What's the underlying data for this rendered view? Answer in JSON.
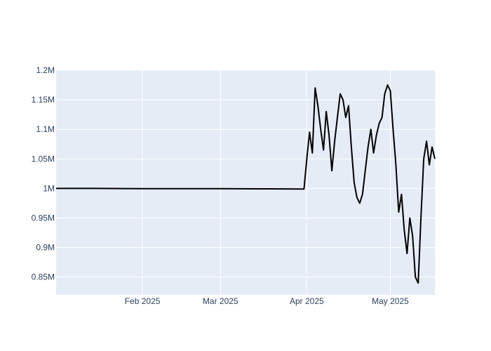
{
  "chart_data": {
    "type": "line",
    "title": "",
    "xlabel": "",
    "ylabel": "",
    "x_range": [
      "2025-01-01",
      "2025-05-17"
    ],
    "ylim": [
      820000,
      1200000
    ],
    "x_ticks": [
      {
        "date": "2025-02-01",
        "label": "Feb 2025"
      },
      {
        "date": "2025-03-01",
        "label": "Mar 2025"
      },
      {
        "date": "2025-04-01",
        "label": "Apr 2025"
      },
      {
        "date": "2025-05-01",
        "label": "May 2025"
      }
    ],
    "y_ticks": [
      {
        "value": 850000,
        "label": "0.85M"
      },
      {
        "value": 900000,
        "label": "0.9M"
      },
      {
        "value": 950000,
        "label": "0.95M"
      },
      {
        "value": 1000000,
        "label": "1M"
      },
      {
        "value": 1050000,
        "label": "1.05M"
      },
      {
        "value": 1100000,
        "label": "1.1M"
      },
      {
        "value": 1150000,
        "label": "1.15M"
      },
      {
        "value": 1200000,
        "label": "1.2M"
      }
    ],
    "grid": true,
    "legend": "none",
    "colors": {
      "plot_bg": "#e5ecf6",
      "grid": "#ffffff",
      "line": "#000000",
      "tick_text": "#2a3f5f"
    },
    "series": [
      {
        "x": [
          "2025-01-01",
          "2025-01-15",
          "2025-01-31",
          "2025-02-15",
          "2025-03-01",
          "2025-03-15",
          "2025-03-31",
          "2025-04-01",
          "2025-04-02",
          "2025-04-03",
          "2025-04-04",
          "2025-04-05",
          "2025-04-06",
          "2025-04-07",
          "2025-04-08",
          "2025-04-09",
          "2025-04-10",
          "2025-04-11",
          "2025-04-12",
          "2025-04-13",
          "2025-04-14",
          "2025-04-15",
          "2025-04-16",
          "2025-04-17",
          "2025-04-18",
          "2025-04-19",
          "2025-04-20",
          "2025-04-21",
          "2025-04-22",
          "2025-04-23",
          "2025-04-24",
          "2025-04-25",
          "2025-04-26",
          "2025-04-27",
          "2025-04-28",
          "2025-04-29",
          "2025-04-30",
          "2025-05-01",
          "2025-05-02",
          "2025-05-03",
          "2025-05-04",
          "2025-05-05",
          "2025-05-06",
          "2025-05-07",
          "2025-05-08",
          "2025-05-09",
          "2025-05-10",
          "2025-05-11",
          "2025-05-12",
          "2025-05-13",
          "2025-05-14",
          "2025-05-15",
          "2025-05-16",
          "2025-05-17"
        ],
        "y": [
          1000000,
          1000000,
          999500,
          999500,
          999500,
          999300,
          999000,
          1050000,
          1095000,
          1060000,
          1170000,
          1140000,
          1100000,
          1065000,
          1130000,
          1090000,
          1030000,
          1080000,
          1120000,
          1160000,
          1150000,
          1120000,
          1140000,
          1070000,
          1010000,
          985000,
          975000,
          990000,
          1030000,
          1070000,
          1100000,
          1060000,
          1090000,
          1110000,
          1120000,
          1160000,
          1175000,
          1165000,
          1100000,
          1040000,
          960000,
          990000,
          930000,
          890000,
          950000,
          920000,
          850000,
          840000,
          950000,
          1050000,
          1080000,
          1040000,
          1070000,
          1050000
        ]
      }
    ]
  }
}
